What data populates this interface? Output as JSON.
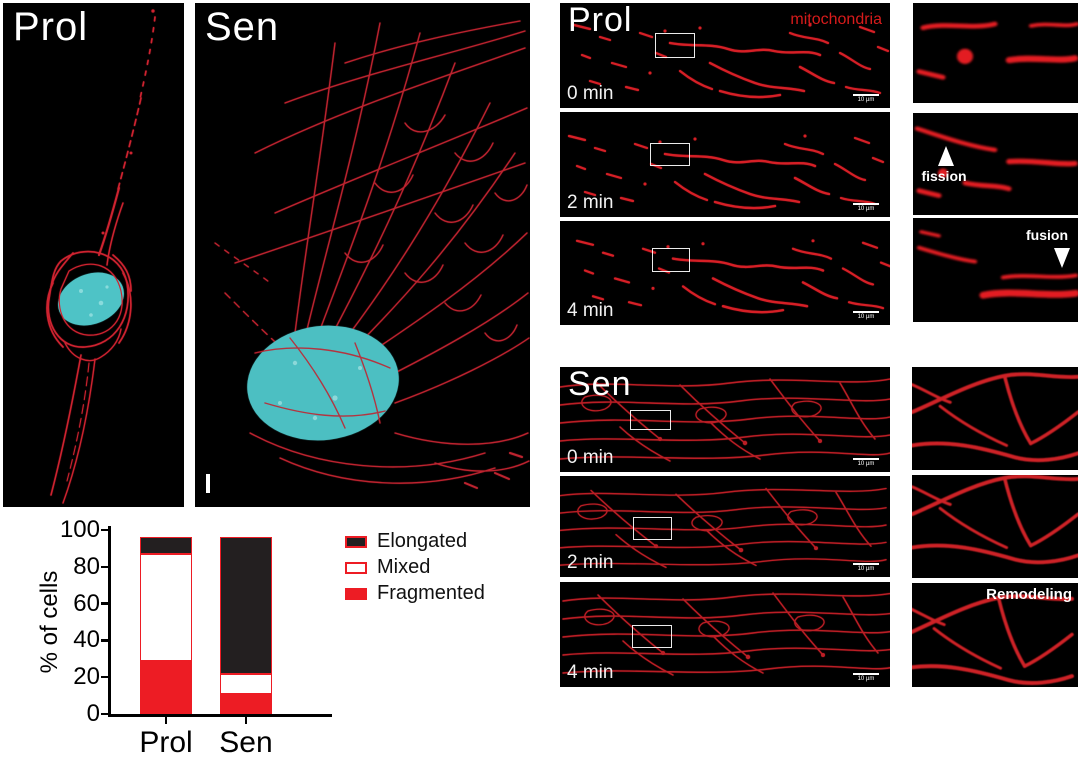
{
  "figure": {
    "type": "scientific-figure",
    "background": "#ffffff"
  },
  "colors": {
    "mitochondria_red": "#d8202a",
    "nucleus_cyan": "#4ec3c6",
    "panel_background": "#000000",
    "annotation_white": "#ffffff",
    "chart_red": "#ed1c24",
    "chart_black": "#231f20"
  },
  "panels": {
    "prol_3d": {
      "label": "Prol"
    },
    "sen_3d": {
      "label": "Sen"
    },
    "prol_live": {
      "label": "Prol",
      "channel_label": "mitochondria",
      "frames": [
        {
          "time": "0 min",
          "scalebar": "10 µm"
        },
        {
          "time": "2 min",
          "scalebar": "10 µm"
        },
        {
          "time": "4 min",
          "scalebar": "10 µm"
        }
      ],
      "insets": [
        {
          "annotation": ""
        },
        {
          "annotation": "fission",
          "arrow": "up"
        },
        {
          "annotation": "fusion",
          "arrow": "down"
        }
      ]
    },
    "sen_live": {
      "label": "Sen",
      "frames": [
        {
          "time": "0 min",
          "scalebar": "10 µm"
        },
        {
          "time": "2 min",
          "scalebar": "10 µm"
        },
        {
          "time": "4 min",
          "scalebar": "10 µm"
        }
      ],
      "insets": [
        {
          "annotation": ""
        },
        {
          "annotation": ""
        },
        {
          "annotation": "Remodeling"
        }
      ]
    }
  },
  "chart_data": {
    "type": "bar",
    "stacked": true,
    "title": "",
    "categories": [
      "Prol",
      "Sen"
    ],
    "series": [
      {
        "name": "Fragmented",
        "fill": "#ed1c24",
        "border": "#ed1c24",
        "values": [
          29,
          11
        ]
      },
      {
        "name": "Mixed",
        "fill": "#ffffff",
        "border": "#ed1c24",
        "values": [
          58,
          11
        ]
      },
      {
        "name": "Elongated",
        "fill": "#231f20",
        "border": "#ed1c24",
        "values": [
          9,
          74
        ]
      }
    ],
    "xlabel": "",
    "ylabel": "% of cells",
    "yticks": [
      0,
      20,
      40,
      60,
      80,
      100
    ],
    "ylim": [
      0,
      100
    ],
    "grid": false,
    "legend_position": "right",
    "legend_order": [
      "Elongated",
      "Mixed",
      "Fragmented"
    ]
  }
}
